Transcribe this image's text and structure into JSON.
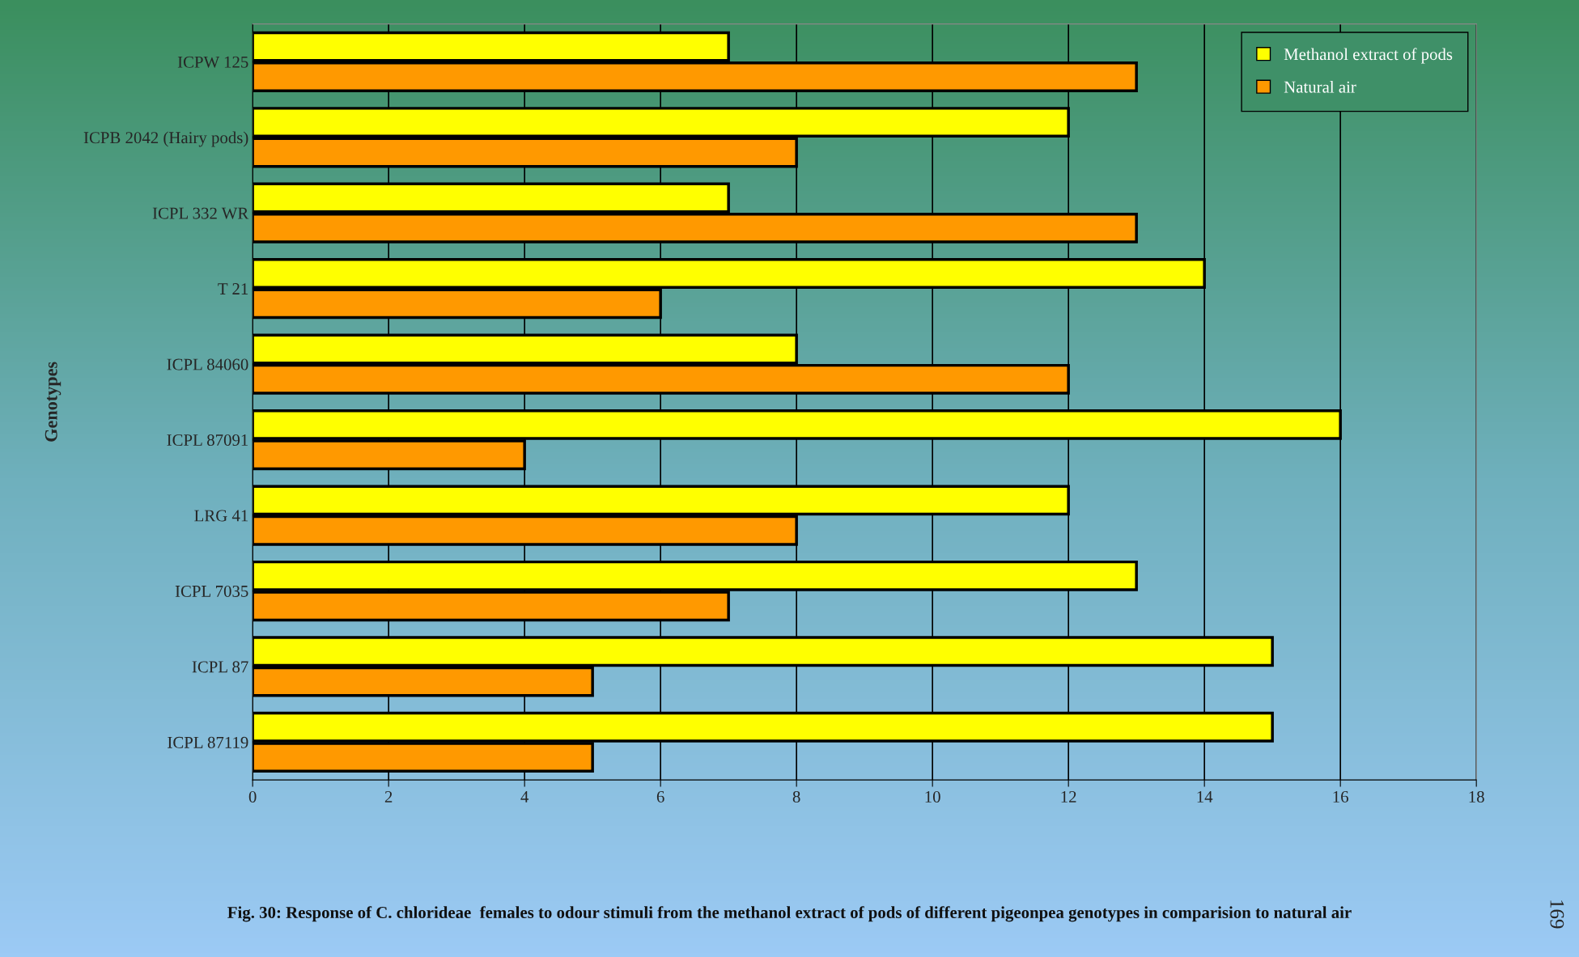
{
  "chart_data": {
    "type": "bar",
    "orientation": "horizontal",
    "title": "Fig. 30: Response of C. chlorideae  females to odour stimuli from the methanol extract of pods of different pigeonpea genotypes in comparision to natural air",
    "ylabel": "Genotypes",
    "categories": [
      "ICPW 125",
      "ICPB 2042 (Hairy pods)",
      "ICPL 332 WR",
      "T 21",
      "ICPL 84060",
      "ICPL 87091",
      "LRG 41",
      "ICPL 7035",
      "ICPL 87",
      "ICPL 87119"
    ],
    "series": [
      {
        "name": "Methanol extract of pods",
        "color": "#ffff00",
        "values": [
          7,
          12,
          7,
          14,
          8,
          16,
          12,
          13,
          15,
          15
        ]
      },
      {
        "name": "Natural air",
        "color": "#ff9900",
        "values": [
          13,
          8,
          13,
          6,
          12,
          4,
          8,
          7,
          5,
          5
        ]
      }
    ],
    "xlim": [
      0,
      18
    ],
    "xticks": [
      0,
      2,
      4,
      6,
      8,
      10,
      12,
      14,
      16,
      18
    ],
    "grid": "x",
    "legend": "top right",
    "annotations": [
      "169"
    ]
  }
}
